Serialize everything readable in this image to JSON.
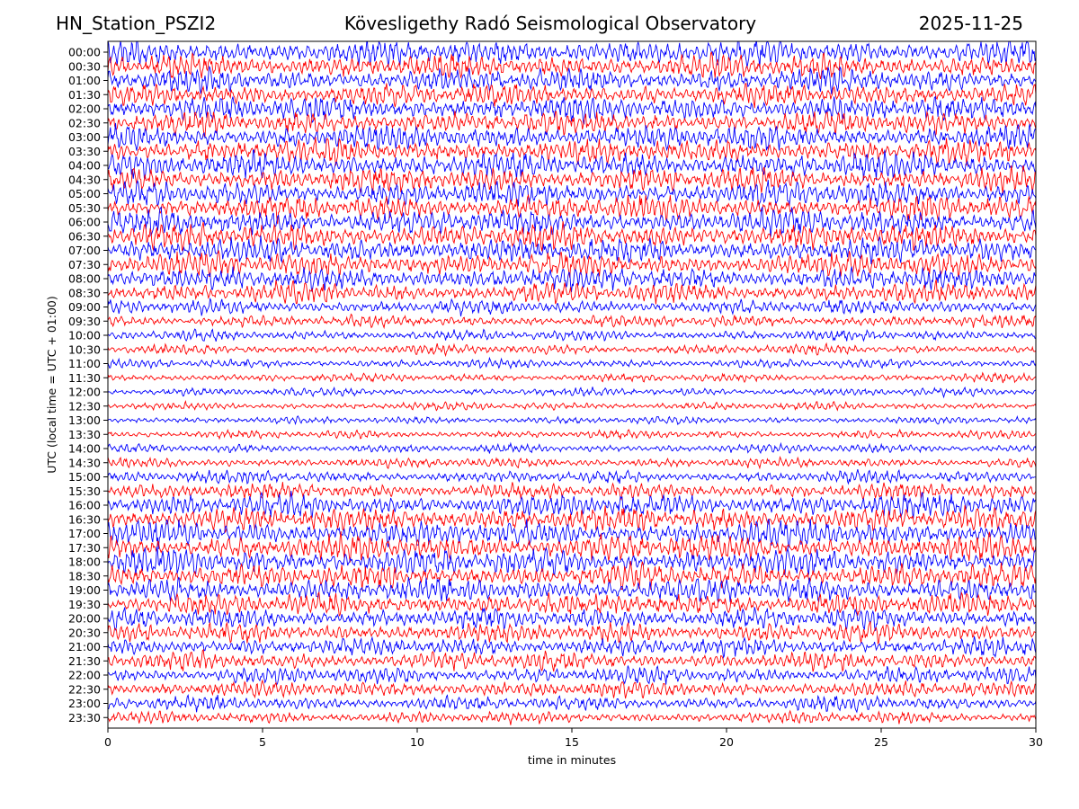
{
  "header": {
    "station": "HN_Station_PSZI2",
    "observatory": "Kövesligethy Radó Seismological Observatory",
    "date": "2025-11-25"
  },
  "chart_data": {
    "type": "line",
    "chart_kind": "helicorder",
    "xlabel": "time in minutes",
    "ylabel": "UTC (local time = UTC + 01:00)",
    "xlim": [
      0,
      30
    ],
    "x_ticks": [
      "0",
      "5",
      "10",
      "15",
      "20",
      "25",
      "30"
    ],
    "x_tick_values": [
      0,
      5,
      10,
      15,
      20,
      25,
      30
    ],
    "y_tick_labels": [
      "00:00",
      "00:30",
      "01:00",
      "01:30",
      "02:00",
      "02:30",
      "03:00",
      "03:30",
      "04:00",
      "04:30",
      "05:00",
      "05:30",
      "06:00",
      "06:30",
      "07:00",
      "07:30",
      "08:00",
      "08:30",
      "09:00",
      "09:30",
      "10:00",
      "10:30",
      "11:00",
      "11:30",
      "12:00",
      "12:30",
      "13:00",
      "13:30",
      "14:00",
      "14:30",
      "15:00",
      "15:30",
      "16:00",
      "16:30",
      "17:00",
      "17:30",
      "18:00",
      "18:30",
      "19:00",
      "19:30",
      "20:00",
      "20:30",
      "21:00",
      "21:30",
      "22:00",
      "22:30",
      "23:00",
      "23:30"
    ],
    "trace_colors": [
      "#0000ff",
      "#ff0000"
    ],
    "grid": false,
    "trace_activity_by_row": [
      3.2,
      3.0,
      3.0,
      2.8,
      3.0,
      2.8,
      3.0,
      3.0,
      3.2,
      3.0,
      3.0,
      3.0,
      3.2,
      3.2,
      3.0,
      3.0,
      2.8,
      2.5,
      1.8,
      1.5,
      1.3,
      1.2,
      1.1,
      1.0,
      1.0,
      1.0,
      0.9,
      1.0,
      1.1,
      1.2,
      1.5,
      2.0,
      2.8,
      3.0,
      3.2,
      3.2,
      3.2,
      3.0,
      3.0,
      2.8,
      2.6,
      2.4,
      2.2,
      2.2,
      2.0,
      2.0,
      1.8,
      1.5
    ]
  }
}
